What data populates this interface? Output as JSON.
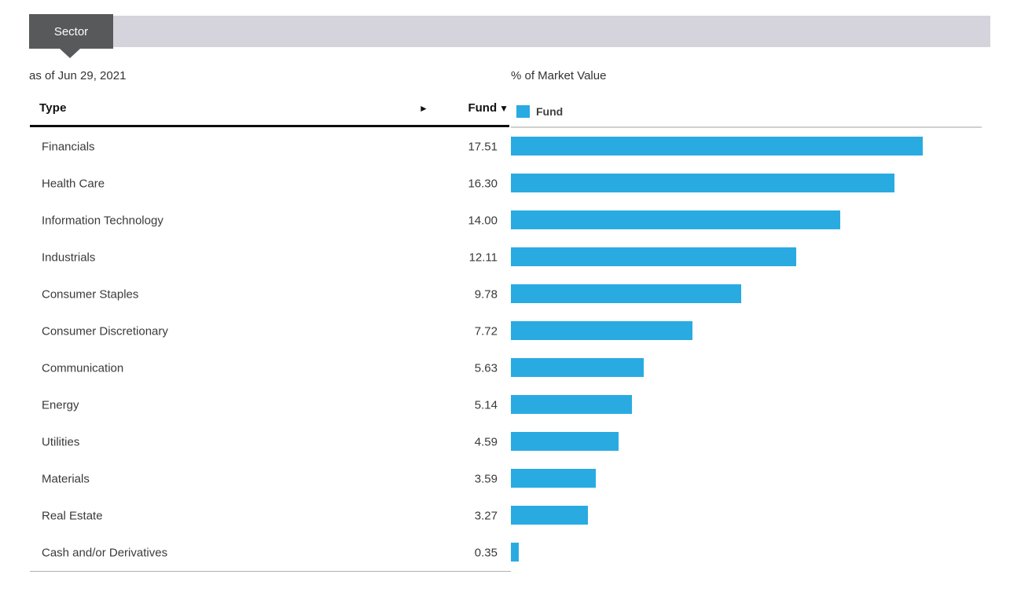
{
  "tab": {
    "label": "Sector"
  },
  "meta": {
    "as_of": "as of Jun 29, 2021",
    "axis_title": "% of Market Value"
  },
  "table": {
    "type_header": "Type",
    "expand_icon": "►",
    "fund_header": "Fund",
    "sort_icon": "▼"
  },
  "legend": {
    "label": "Fund"
  },
  "colors": {
    "bar": "#29abe2",
    "tab_background": "#58595b",
    "tab_strip_background": "#d5d4dc",
    "header_rule": "#0d0d0d",
    "text": "#3a3a3a"
  },
  "chart_data": {
    "type": "bar",
    "orientation": "horizontal",
    "title": "% of Market Value",
    "series_name": "Fund",
    "categories": [
      "Financials",
      "Health Care",
      "Information Technology",
      "Industrials",
      "Consumer Staples",
      "Consumer Discretionary",
      "Communication",
      "Energy",
      "Utilities",
      "Materials",
      "Real Estate",
      "Cash and/or Derivatives"
    ],
    "values": [
      17.51,
      16.3,
      14.0,
      12.11,
      9.78,
      7.72,
      5.63,
      5.14,
      4.59,
      3.59,
      3.27,
      0.35
    ],
    "value_decimals": 2,
    "xlim": [
      0,
      20
    ],
    "grid": false,
    "legend_position": "top",
    "bar_color": "#29abe2"
  }
}
